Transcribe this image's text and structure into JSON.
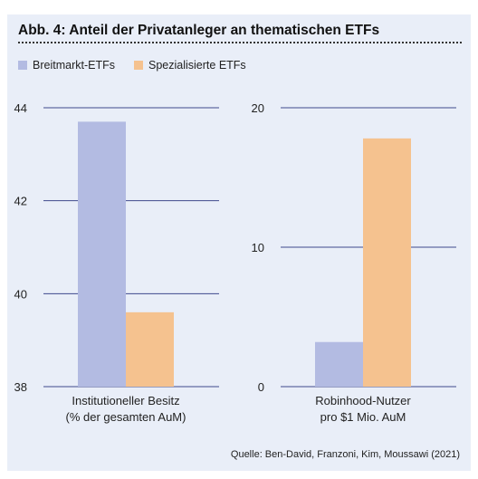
{
  "title": "Abb. 4: Anteil der Privatanleger an thematischen ETFs",
  "source": "Quelle: Ben-David, Franzoni, Kim, Moussawi (2021)",
  "colors": {
    "background": "#e9eef8",
    "gridline": "#3f4a8c",
    "breitmarkt": "#b3bbe2",
    "spezialisiert": "#f5c28f"
  },
  "legend": [
    {
      "name": "Breitmarkt-ETFs",
      "color": "#b3bbe2"
    },
    {
      "name": "Spezialisierte ETFs",
      "color": "#f5c28f"
    }
  ],
  "chart_data": [
    {
      "type": "bar",
      "categories": [
        "Institutioneller Besitz\n(% der gesamten AuM)"
      ],
      "category_lines": [
        "Institutioneller Besitz",
        "(% der gesamten AuM)"
      ],
      "series": [
        {
          "name": "Breitmarkt-ETFs",
          "values": [
            43.7
          ]
        },
        {
          "name": "Spezialisierte ETFs",
          "values": [
            39.6
          ]
        }
      ],
      "ylim": [
        38,
        44
      ],
      "yticks": [
        38,
        40,
        42,
        44
      ],
      "ytick_labels": [
        "38",
        "40",
        "42",
        "44"
      ],
      "grid": true,
      "legend": "top-left"
    },
    {
      "type": "bar",
      "categories": [
        "Robinhood-Nutzer\npro $1 Mio. AuM"
      ],
      "category_lines": [
        "Robinhood-Nutzer",
        "pro $1 Mio. AuM"
      ],
      "series": [
        {
          "name": "Breitmarkt-ETFs",
          "values": [
            3.2
          ]
        },
        {
          "name": "Spezialisierte ETFs",
          "values": [
            17.8
          ]
        }
      ],
      "ylim": [
        0,
        20
      ],
      "yticks": [
        0,
        10,
        20
      ],
      "ytick_labels": [
        "0",
        "10",
        "20"
      ],
      "grid": true,
      "legend": "top-left"
    }
  ]
}
